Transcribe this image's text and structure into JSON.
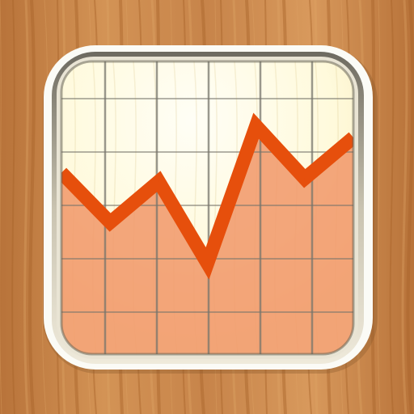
{
  "icon": {
    "name": "stock-chart-app-icon",
    "colors": {
      "wood_base": "#c98549",
      "wood_dark": "#a9642b",
      "wood_light": "#e0a566",
      "frame_white": "#fbfbf6",
      "bezel_outer": "#b3a890",
      "bezel_inner": "#eeeadb",
      "paper": "#fffbe0",
      "paper_glow": "#fffef4",
      "grid_line": "#77756c",
      "line_color": "#e64f0c",
      "fill_color": "#f19a6c"
    }
  },
  "chart_data": {
    "type": "area",
    "grid": true,
    "grid_columns": 5,
    "grid_rows": 5,
    "x": [
      0,
      1,
      2,
      3,
      4,
      5,
      6
    ],
    "y": [
      0.62,
      0.45,
      0.59,
      0.31,
      0.78,
      0.6,
      0.74
    ],
    "ylim": [
      0,
      1
    ]
  }
}
